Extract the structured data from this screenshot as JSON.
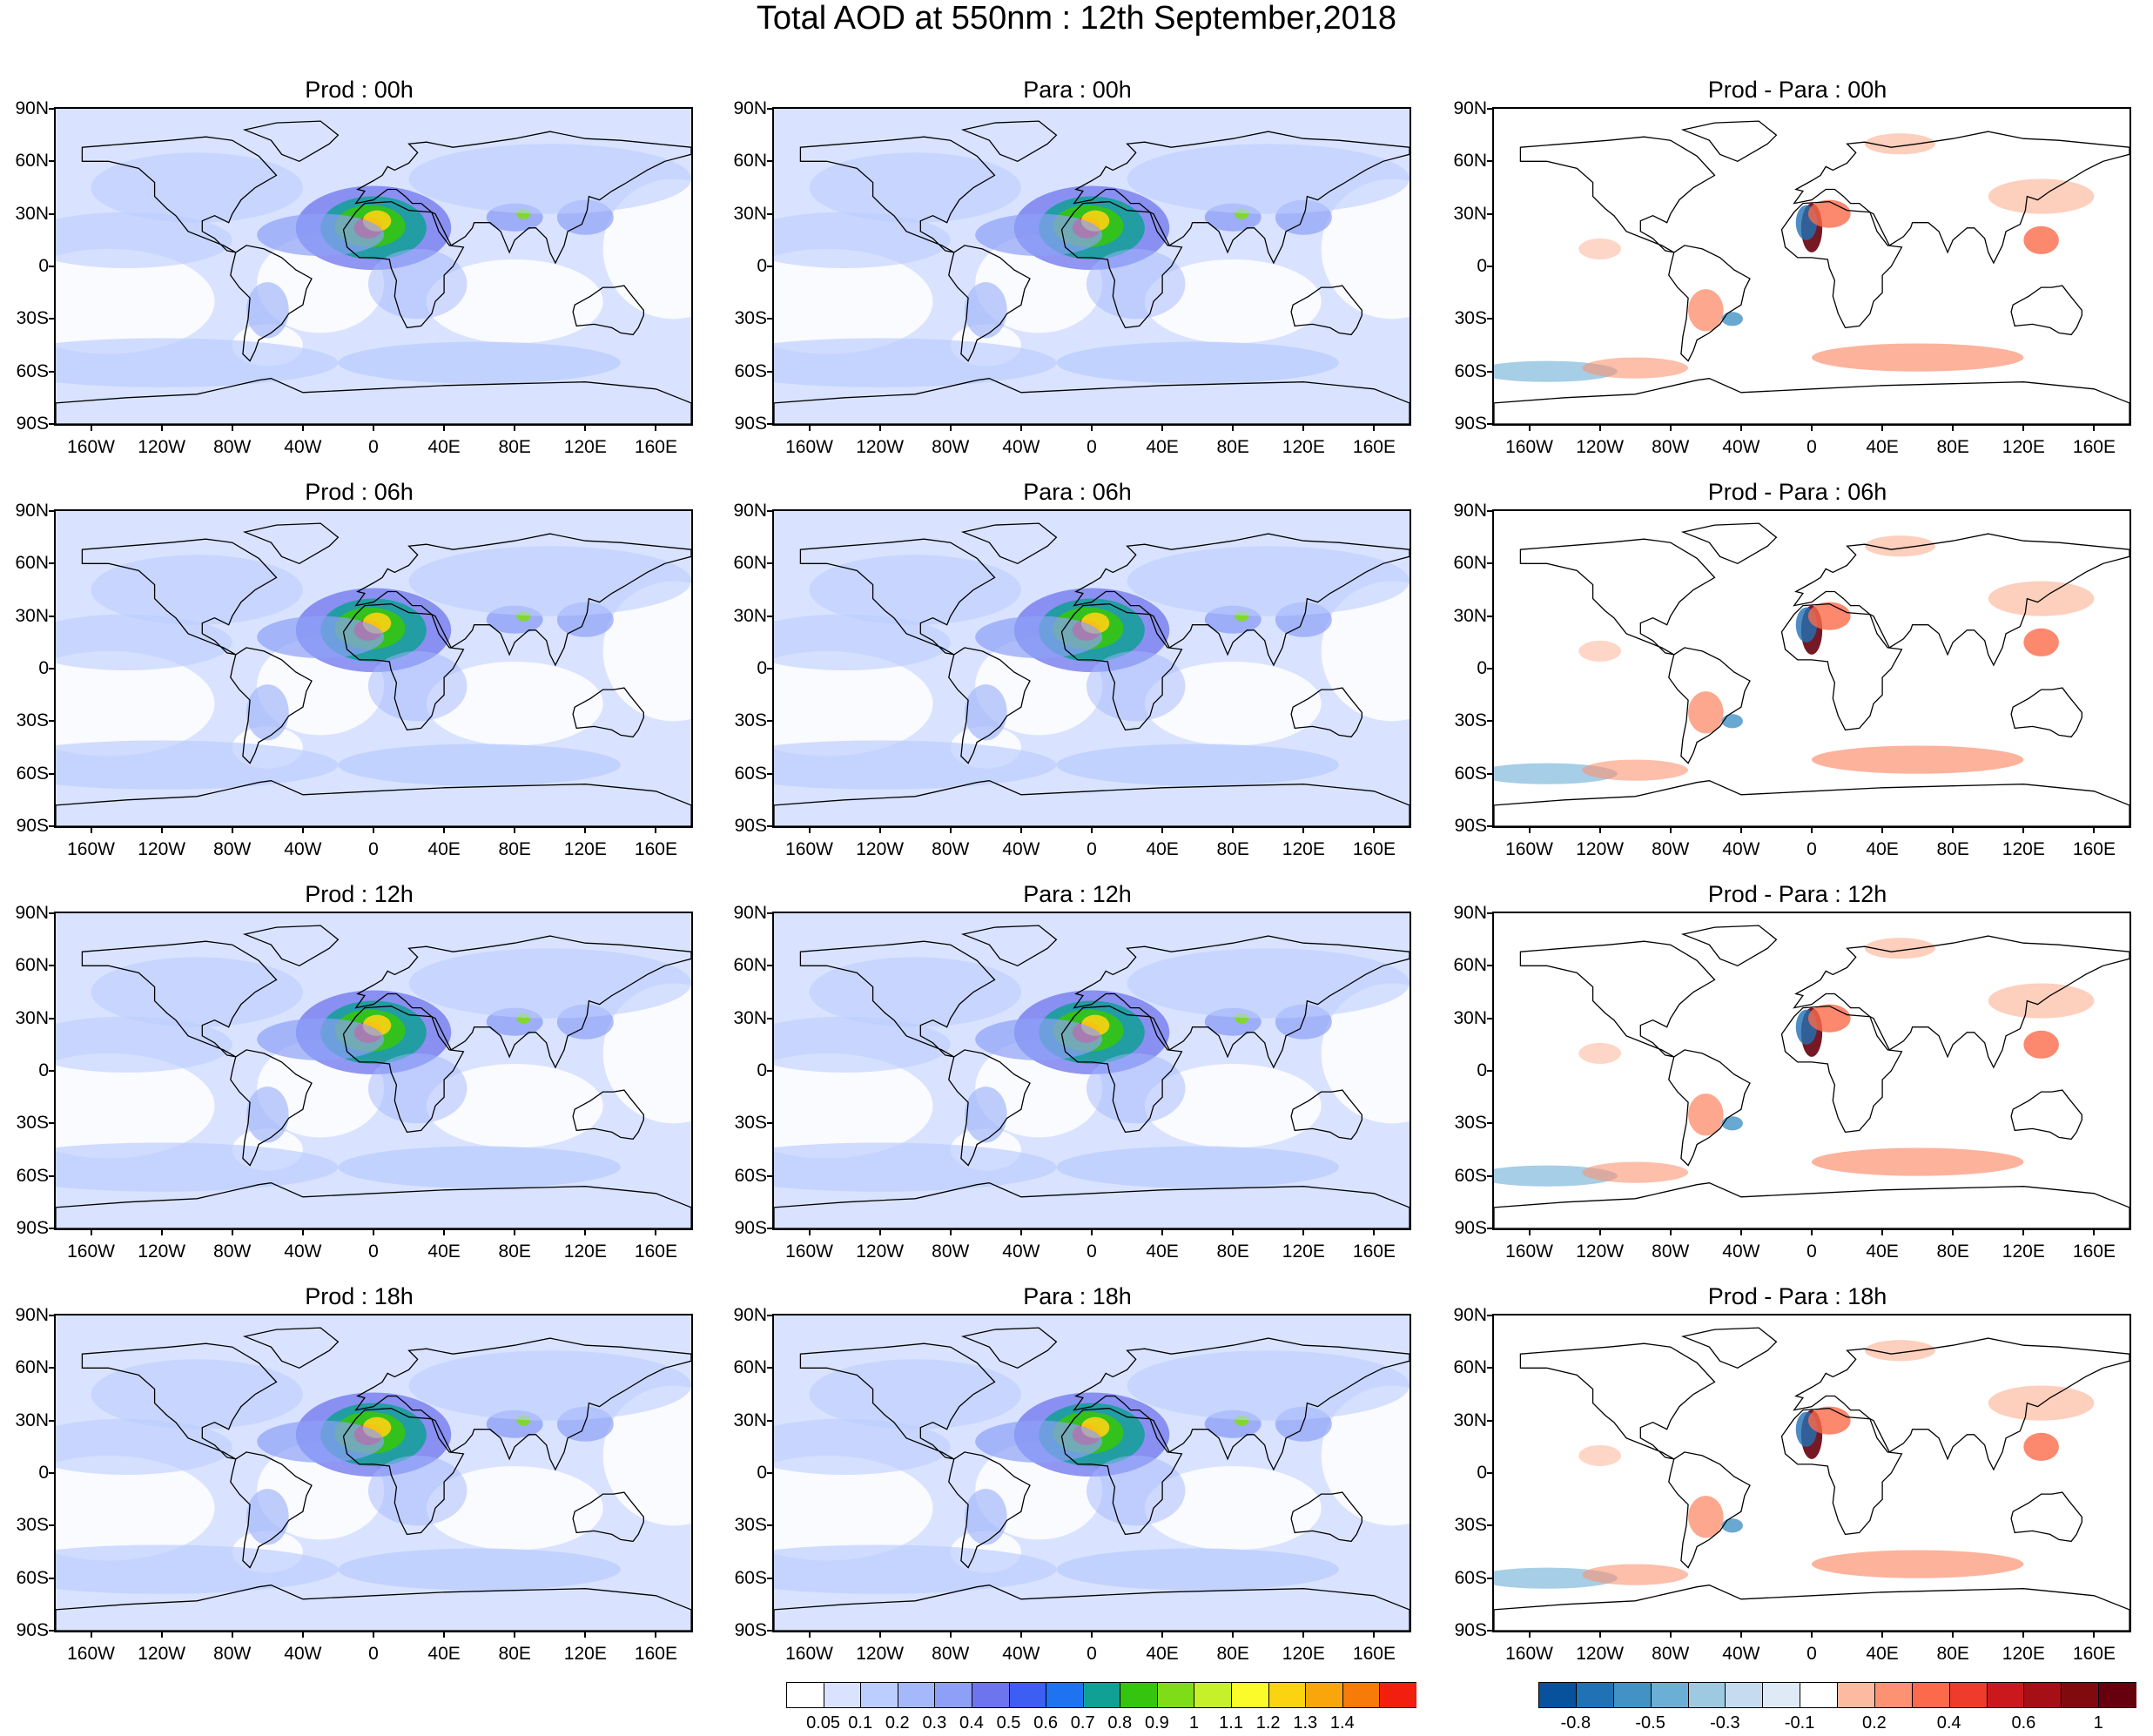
{
  "title": "Total AOD at 550nm : 12th September,2018",
  "lat_labels": [
    "90N",
    "60N",
    "30N",
    "0",
    "30S",
    "60S",
    "90S"
  ],
  "lon_labels": [
    "160W",
    "120W",
    "80W",
    "40W",
    "0",
    "40E",
    "80E",
    "120E",
    "160E"
  ],
  "panels": [
    {
      "title": "Prod : 00h",
      "kind": "aod"
    },
    {
      "title": "Para : 00h",
      "kind": "aod"
    },
    {
      "title": "Prod - Para : 00h",
      "kind": "diff"
    },
    {
      "title": "Prod : 06h",
      "kind": "aod"
    },
    {
      "title": "Para : 06h",
      "kind": "aod"
    },
    {
      "title": "Prod - Para : 06h",
      "kind": "diff"
    },
    {
      "title": "Prod : 12h",
      "kind": "aod"
    },
    {
      "title": "Para : 12h",
      "kind": "aod"
    },
    {
      "title": "Prod - Para : 12h",
      "kind": "diff"
    },
    {
      "title": "Prod : 18h",
      "kind": "aod"
    },
    {
      "title": "Para : 18h",
      "kind": "aod"
    },
    {
      "title": "Prod - Para : 18h",
      "kind": "diff"
    }
  ],
  "aod_colorbar": {
    "labels": [
      "0.05",
      "0.1",
      "0.2",
      "0.3",
      "0.4",
      "0.5",
      "0.6",
      "0.7",
      "0.8",
      "0.9",
      "1",
      "1.1",
      "1.2",
      "1.3",
      "1.4"
    ],
    "colors": [
      "#ffffff",
      "#d9e3ff",
      "#bccdff",
      "#a4b8fb",
      "#8d9ff6",
      "#6d74ee",
      "#3c5ef2",
      "#1f72f0",
      "#10a096",
      "#35c50f",
      "#7fdc18",
      "#c6f02a",
      "#fbfb2a",
      "#fbd311",
      "#f9a60c",
      "#f77b08",
      "#f21e0e"
    ]
  },
  "diff_colorbar": {
    "labels": [
      "-0.8",
      "-0.5",
      "-0.3",
      "-0.1",
      "0.2",
      "0.4",
      "0.6",
      "1"
    ],
    "colors": [
      "#08519c",
      "#2171b5",
      "#4292c6",
      "#6baed6",
      "#9ecae1",
      "#c6dbef",
      "#deebf7",
      "#ffffff",
      "#fcbba1",
      "#fc9272",
      "#fb6a4a",
      "#ef3b2c",
      "#cb181d",
      "#a50f15",
      "#800a0e",
      "#67000d"
    ]
  }
}
